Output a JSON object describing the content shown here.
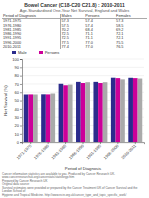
{
  "chart_data": {
    "type": "bar",
    "title": "Bowel Cancer (C18-C20 C21.8) : 2010-2011",
    "subtitle": "Age-Standardised One-Year Net Survival, England and Wales",
    "categories": [
      "1971-1975",
      "1976-1980",
      "1981-1985",
      "1986-1990",
      "1991-1995",
      "1996-2000",
      "2010-2011"
    ],
    "series": [
      {
        "name": "Male",
        "color": "#2b2b8c",
        "values": [
          57.3,
          57.5,
          70.2,
          72.5,
          72.5,
          77.5,
          77.4
        ]
      },
      {
        "name": "Persons",
        "color": "#cc0099",
        "values": [
          57.4,
          57.4,
          68.4,
          71.1,
          71.1,
          77.0,
          77.0
        ]
      },
      {
        "color": "#aaaaaa",
        "values": [
          57.3,
          58.5,
          69.2,
          72.1,
          72.1,
          75.5,
          76.5
        ]
      }
    ],
    "xlabel": "Period of Diagnosis",
    "ylabel": "Net Survival (%)",
    "ylim": [
      0,
      100
    ],
    "yticks": [
      0,
      10,
      20,
      30,
      40,
      50,
      60,
      70,
      80,
      90,
      100
    ],
    "grid": true,
    "legend": "top",
    "table": {
      "headers": [
        "Period of Diagnosis",
        "Males",
        "Persons",
        "Females"
      ],
      "rows": [
        [
          "1971-1975",
          "57.3",
          "57.4",
          "57.3"
        ],
        [
          "1976-1980",
          "57.5",
          "57.4",
          "58.5"
        ],
        [
          "1981-1985",
          "70.2",
          "68.4",
          "69.2"
        ],
        [
          "1986-1990",
          "72.5",
          "71.1",
          "72.1"
        ],
        [
          "1991-1995",
          "72.5",
          "71.1",
          "72.1"
        ],
        [
          "1996-2000",
          "77.5",
          "77.0",
          "75.5"
        ],
        [
          "2010-2011",
          "77.4",
          "77.0",
          "76.5"
        ]
      ]
    },
    "footer": [
      "Cancer information statistics are available to you. Produced by Cancer Research UK.",
      "www.cancerresearchuk.org/cancerstats/statsforgp.htm",
      "Prepared by Cancer Research UK",
      "Original data source:",
      "Survival estimates were provided or prepared by the Cancer Treatment UK of Cancer Survival and the London School of",
      "Hygiene and Tropical Medicine. http://www.ncin.org.uk/cancer_type_and_topic_specific_work/"
    ]
  }
}
